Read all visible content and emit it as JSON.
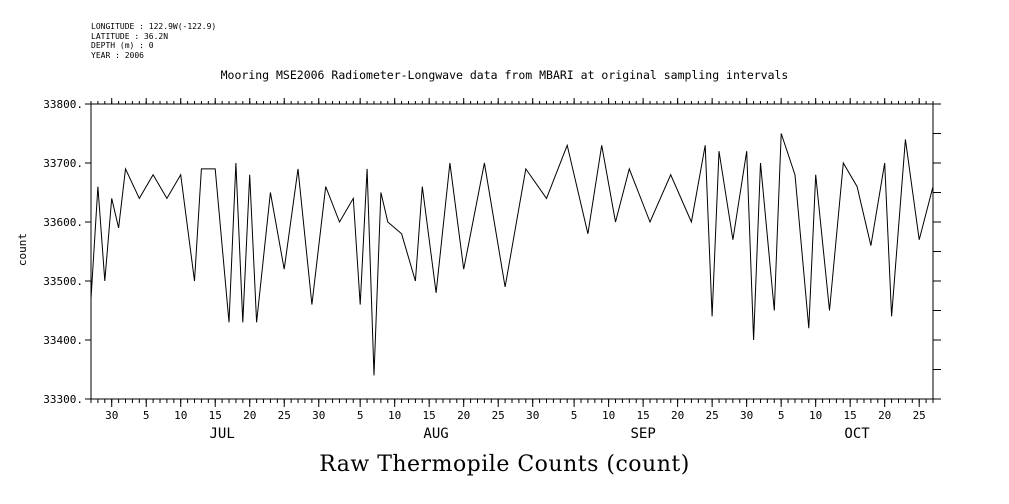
{
  "meta": {
    "longitude": "LONGITUDE : 122.9W(-122.9)",
    "latitude": "LATITUDE : 36.2N",
    "depth": "DEPTH (m) : 0",
    "year": "YEAR : 2006"
  },
  "chart_data": {
    "type": "line",
    "title": "Mooring MSE2006 Radiometer-Longwave data from MBARI at original sampling intervals",
    "xlabel": "Raw Thermopile Counts (count)",
    "ylabel": "count",
    "ylim": [
      33300,
      33800
    ],
    "yticks": [
      33300,
      33400,
      33500,
      33600,
      33700,
      33800
    ],
    "ytick_labels": [
      "33300.",
      "33400.",
      "33500.",
      "33600.",
      "33700.",
      "33800."
    ],
    "xlim": [
      "2006-06-27",
      "2006-10-27"
    ],
    "xtick_days": [
      "30",
      "5",
      "10",
      "15",
      "20",
      "25",
      "30",
      "5",
      "10",
      "15",
      "20",
      "25",
      "30",
      "5",
      "10",
      "15",
      "20",
      "25",
      "30",
      "5",
      "10",
      "15",
      "20",
      "25"
    ],
    "xtick_dates": [
      "2006-06-30",
      "2006-07-05",
      "2006-07-10",
      "2006-07-15",
      "2006-07-20",
      "2006-07-25",
      "2006-07-30",
      "2006-08-05",
      "2006-08-10",
      "2006-08-15",
      "2006-08-20",
      "2006-08-25",
      "2006-08-30",
      "2006-09-05",
      "2006-09-10",
      "2006-09-15",
      "2006-09-20",
      "2006-09-25",
      "2006-09-30",
      "2006-10-05",
      "2006-10-10",
      "2006-10-15",
      "2006-10-20",
      "2006-10-25"
    ],
    "months": [
      {
        "label": "JUL",
        "date": "2006-07-16"
      },
      {
        "label": "AUG",
        "date": "2006-08-16"
      },
      {
        "label": "SEP",
        "date": "2006-09-15"
      },
      {
        "label": "OCT",
        "date": "2006-10-16"
      }
    ],
    "series": [
      {
        "color": "#000000",
        "x": [
          "2006-06-27",
          "2006-06-28",
          "2006-06-29",
          "2006-06-30",
          "2006-07-01",
          "2006-07-02",
          "2006-07-04",
          "2006-07-06",
          "2006-07-08",
          "2006-07-10",
          "2006-07-12",
          "2006-07-13",
          "2006-07-15",
          "2006-07-17",
          "2006-07-18",
          "2006-07-19",
          "2006-07-20",
          "2006-07-21",
          "2006-07-23",
          "2006-07-25",
          "2006-07-27",
          "2006-07-29",
          "2006-07-31",
          "2006-08-02",
          "2006-08-04",
          "2006-08-05",
          "2006-08-06",
          "2006-08-07",
          "2006-08-08",
          "2006-08-09",
          "2006-08-11",
          "2006-08-13",
          "2006-08-14",
          "2006-08-16",
          "2006-08-18",
          "2006-08-20",
          "2006-08-23",
          "2006-08-26",
          "2006-08-29",
          "2006-09-01",
          "2006-09-04",
          "2006-09-07",
          "2006-09-09",
          "2006-09-11",
          "2006-09-13",
          "2006-09-16",
          "2006-09-19",
          "2006-09-22",
          "2006-09-24",
          "2006-09-25",
          "2006-09-26",
          "2006-09-28",
          "2006-09-30",
          "2006-10-01",
          "2006-10-02",
          "2006-10-04",
          "2006-10-05",
          "2006-10-07",
          "2006-10-09",
          "2006-10-10",
          "2006-10-12",
          "2006-10-14",
          "2006-10-16",
          "2006-10-18",
          "2006-10-20",
          "2006-10-21",
          "2006-10-23",
          "2006-10-25",
          "2006-10-27"
        ],
        "y": [
          33470,
          33660,
          33500,
          33640,
          33590,
          33690,
          33640,
          33680,
          33640,
          33680,
          33500,
          33690,
          33690,
          33430,
          33700,
          33430,
          33680,
          33430,
          33650,
          33520,
          33690,
          33460,
          33660,
          33600,
          33640,
          33460,
          33690,
          33340,
          33650,
          33600,
          33580,
          33500,
          33660,
          33480,
          33700,
          33520,
          33700,
          33490,
          33690,
          33640,
          33730,
          33580,
          33730,
          33600,
          33690,
          33600,
          33680,
          33600,
          33730,
          33440,
          33720,
          33570,
          33720,
          33400,
          33700,
          33450,
          33750,
          33680,
          33420,
          33680,
          33450,
          33700,
          33660,
          33560,
          33700,
          33440,
          33740,
          33570,
          33660
        ]
      }
    ]
  }
}
